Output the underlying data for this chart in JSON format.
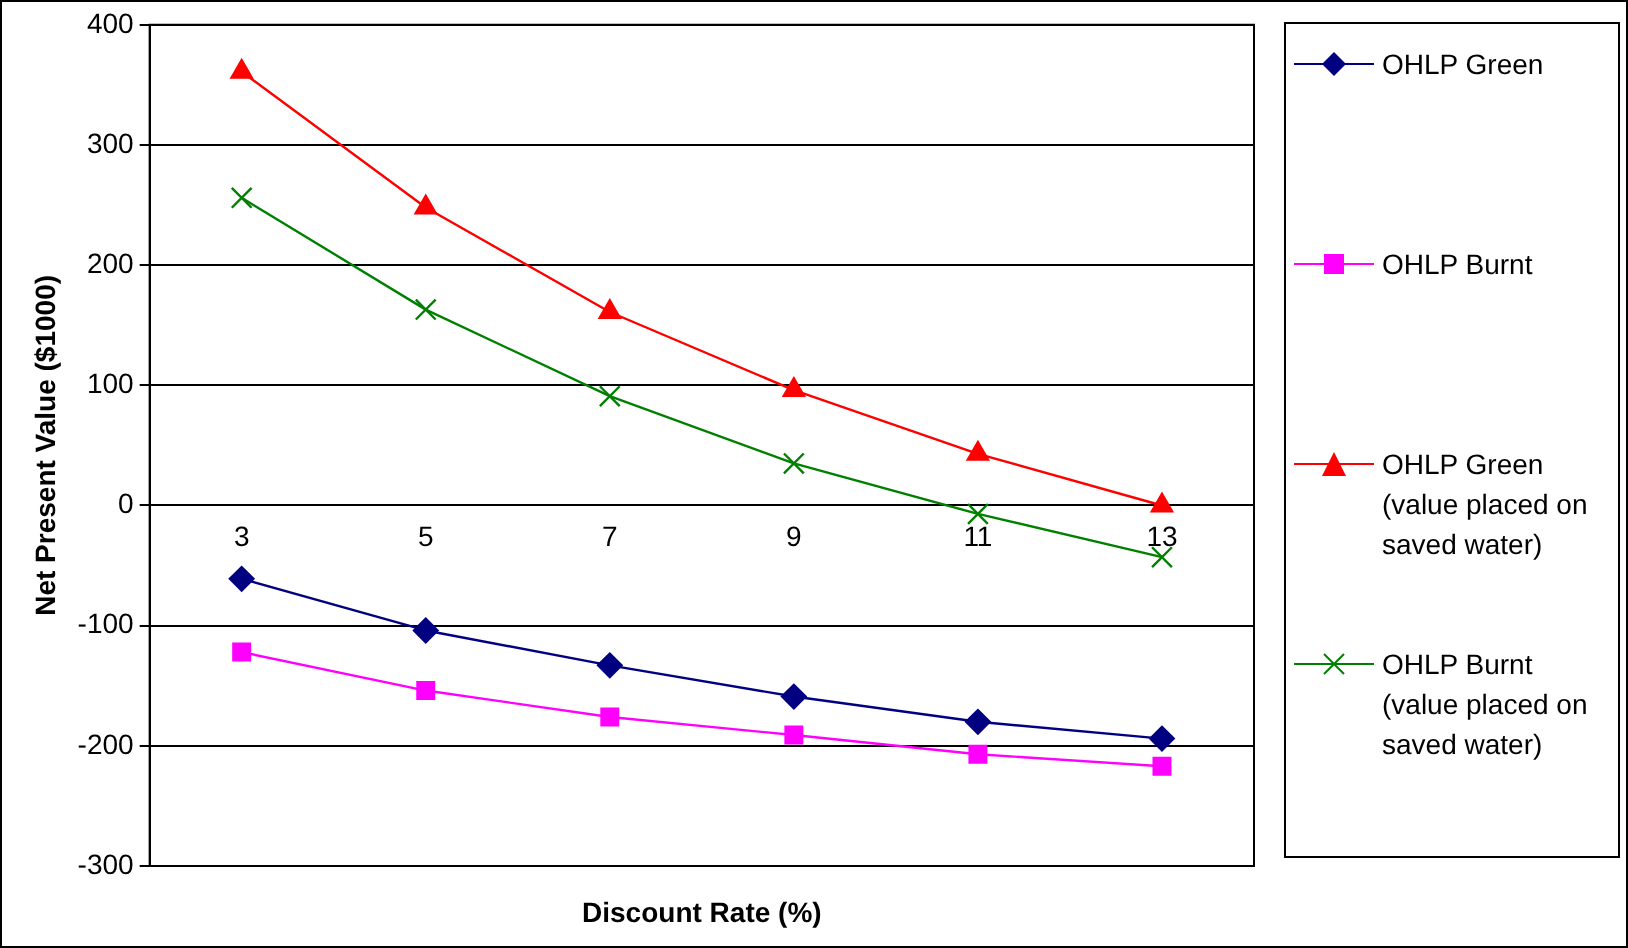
{
  "chart_data": {
    "type": "line",
    "xlabel": "Discount Rate (%)",
    "ylabel": "Net Present Value ($1000)",
    "categories": [
      "3",
      "5",
      "7",
      "9",
      "11",
      "13"
    ],
    "ylim": [
      -300,
      400
    ],
    "yticks": [
      -300,
      -200,
      -100,
      0,
      100,
      200,
      300,
      400
    ],
    "grid": "y",
    "legend": "right",
    "line_style": "solid",
    "series": [
      {
        "name": "OHLP Green",
        "color": "#000080",
        "marker": "diamond",
        "values": [
          -61,
          -104,
          -133,
          -159,
          -180,
          -194
        ]
      },
      {
        "name": "OHLP Burnt",
        "color": "#ff00ff",
        "marker": "square",
        "values": [
          -122,
          -154,
          -176,
          -191,
          -207,
          -217
        ]
      },
      {
        "name": "OHLP Green (value placed on saved water)",
        "color": "#ff0000",
        "marker": "triangle",
        "values": [
          361,
          248,
          161,
          96,
          43,
          0
        ]
      },
      {
        "name": "OHLP Burnt (value placed on saved water)",
        "color": "#008000",
        "marker": "cross",
        "values": [
          256,
          163,
          91,
          35,
          -7,
          -43
        ]
      }
    ]
  }
}
